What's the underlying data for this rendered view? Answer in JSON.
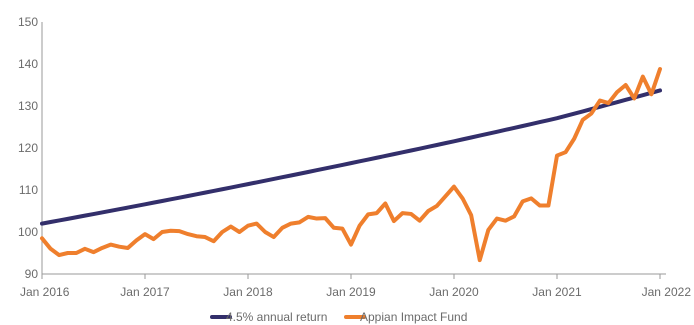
{
  "chart_data": {
    "type": "line",
    "ylim": [
      90,
      150
    ],
    "yticks": [
      90,
      100,
      110,
      120,
      130,
      140,
      150
    ],
    "xlim": [
      "2016-01",
      "2022-01"
    ],
    "xticks": [
      {
        "date": "2016-01",
        "label": "Jan 2016"
      },
      {
        "date": "2017-01",
        "label": "Jan 2017"
      },
      {
        "date": "2018-01",
        "label": "Jan 2018"
      },
      {
        "date": "2019-01",
        "label": "Jan 2019"
      },
      {
        "date": "2020-01",
        "label": "Jan 2020"
      },
      {
        "date": "2021-01",
        "label": "Jan 2021"
      },
      {
        "date": "2022-01",
        "label": "Jan 2022"
      }
    ],
    "grid": false,
    "legend": "bottom",
    "series": [
      {
        "name": "4.5% annual return",
        "color": "#332f6b",
        "x": [
          "2016-01",
          "2017-01",
          "2018-01",
          "2019-01",
          "2020-01",
          "2021-01",
          "2022-01"
        ],
        "y": [
          102.0,
          106.6,
          111.4,
          116.4,
          121.6,
          127.1,
          133.7
        ]
      },
      {
        "name": "Appian Impact Fund",
        "color": "#ef7f2d",
        "x": [
          "2016-01",
          "2016-02",
          "2016-03",
          "2016-04",
          "2016-05",
          "2016-06",
          "2016-07",
          "2016-08",
          "2016-09",
          "2016-10",
          "2016-11",
          "2016-12",
          "2017-01",
          "2017-02",
          "2017-03",
          "2017-04",
          "2017-05",
          "2017-06",
          "2017-07",
          "2017-08",
          "2017-09",
          "2017-10",
          "2017-11",
          "2017-12",
          "2018-01",
          "2018-02",
          "2018-03",
          "2018-04",
          "2018-05",
          "2018-06",
          "2018-07",
          "2018-08",
          "2018-09",
          "2018-10",
          "2018-11",
          "2018-12",
          "2019-01",
          "2019-02",
          "2019-03",
          "2019-04",
          "2019-05",
          "2019-06",
          "2019-07",
          "2019-08",
          "2019-09",
          "2019-10",
          "2019-11",
          "2019-12",
          "2020-01",
          "2020-02",
          "2020-03",
          "2020-04",
          "2020-05",
          "2020-06",
          "2020-07",
          "2020-08",
          "2020-09",
          "2020-10",
          "2020-11",
          "2020-12",
          "2021-01",
          "2021-02",
          "2021-03",
          "2021-04",
          "2021-05",
          "2021-06",
          "2021-07",
          "2021-08",
          "2021-09",
          "2021-10",
          "2021-11",
          "2021-12",
          "2022-01"
        ],
        "y": [
          98.5,
          96.0,
          94.5,
          95.0,
          95.0,
          96.0,
          95.2,
          96.2,
          97.0,
          96.5,
          96.2,
          98.0,
          99.5,
          98.3,
          100.0,
          100.3,
          100.2,
          99.5,
          99.0,
          98.8,
          97.8,
          100.0,
          101.3,
          100.0,
          101.5,
          102.0,
          100.0,
          98.8,
          101.0,
          102.0,
          102.3,
          103.6,
          103.2,
          103.3,
          101.0,
          100.8,
          97.0,
          101.5,
          104.2,
          104.5,
          106.8,
          102.6,
          104.5,
          104.3,
          102.7,
          105.0,
          106.2,
          108.5,
          110.8,
          108.0,
          104.0,
          93.3,
          100.5,
          103.2,
          102.7,
          103.7,
          107.3,
          108.0,
          106.3,
          106.3,
          118.2,
          119.0,
          122.2,
          126.7,
          128.2,
          131.3,
          130.7,
          133.3,
          135.0,
          131.8,
          137.0,
          132.8,
          138.8
        ]
      }
    ]
  }
}
